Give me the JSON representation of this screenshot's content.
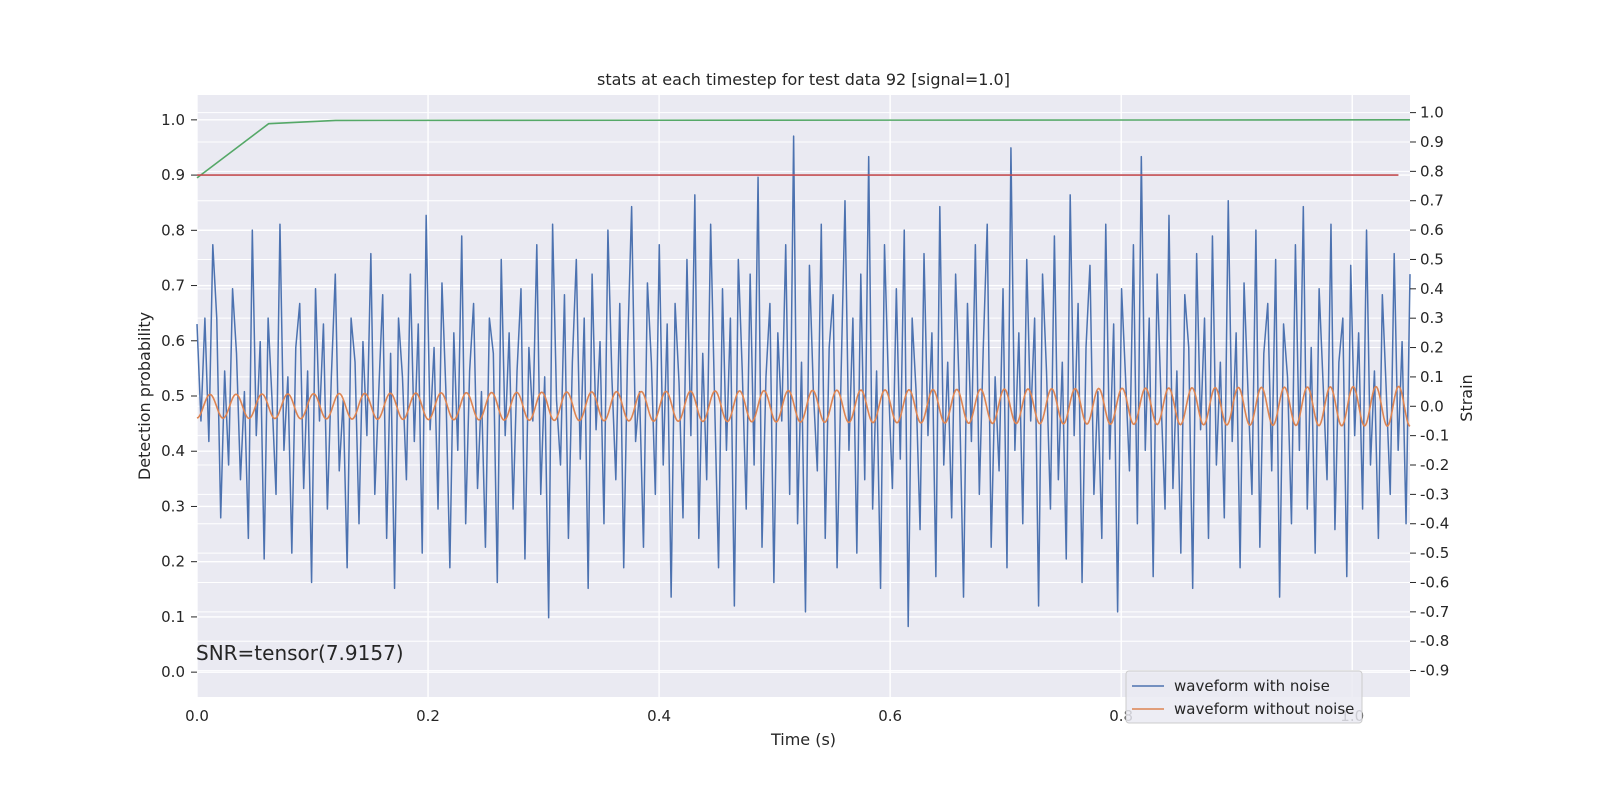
{
  "chart_data": {
    "type": "line",
    "title": "stats at each timestep for test data 92 [signal=1.0]",
    "xlabel": "Time (s)",
    "ylabel_left": "Detection probability",
    "ylabel_right": "Strain",
    "xlim": [
      0.0,
      1.05
    ],
    "ylim_left": [
      -0.045,
      1.045
    ],
    "ylim_right": [
      -0.99,
      1.06
    ],
    "xticks": [
      0.0,
      0.2,
      0.4,
      0.6,
      0.8,
      1.0
    ],
    "yticks_left": [
      0.0,
      0.1,
      0.2,
      0.3,
      0.4,
      0.5,
      0.6,
      0.7,
      0.8,
      0.9,
      1.0
    ],
    "yticks_right": [
      -0.9,
      -0.8,
      -0.7,
      -0.6,
      -0.5,
      -0.4,
      -0.3,
      -0.2,
      -0.1,
      0.0,
      0.1,
      0.2,
      0.3,
      0.4,
      0.5,
      0.6,
      0.7,
      0.8,
      0.9,
      1.0
    ],
    "grid": true,
    "legend_position": "lower-right",
    "annotation": "SNR=tensor(7.9157)",
    "series": [
      {
        "name": "waveform with noise",
        "axis": "right",
        "color": "#4c72b0",
        "x_range": [
          0.0,
          1.05
        ],
        "values": [
          0.28,
          -0.05,
          0.3,
          -0.12,
          0.55,
          0.3,
          -0.38,
          0.12,
          -0.2,
          0.4,
          0.18,
          -0.25,
          0.05,
          -0.45,
          0.6,
          -0.1,
          0.22,
          -0.52,
          0.3,
          0.02,
          -0.3,
          0.62,
          -0.15,
          0.1,
          -0.5,
          0.2,
          0.35,
          -0.28,
          0.12,
          -0.6,
          0.4,
          -0.05,
          0.28,
          -0.35,
          0.1,
          0.45,
          -0.22,
          0.02,
          -0.55,
          0.3,
          0.15,
          -0.4,
          0.22,
          -0.1,
          0.52,
          -0.3,
          0.05,
          0.38,
          -0.45,
          0.18,
          -0.62,
          0.3,
          0.1,
          -0.25,
          0.45,
          -0.12,
          0.28,
          -0.5,
          0.65,
          -0.08,
          0.2,
          -0.35,
          0.42,
          0.05,
          -0.55,
          0.25,
          -0.15,
          0.58,
          -0.4,
          0.12,
          0.35,
          -0.28,
          0.05,
          -0.48,
          0.3,
          0.18,
          -0.6,
          0.5,
          -0.1,
          0.25,
          -0.35,
          0.12,
          0.4,
          -0.52,
          0.2,
          -0.05,
          0.55,
          -0.3,
          0.1,
          -0.72,
          0.62,
          0.02,
          -0.2,
          0.38,
          -0.45,
          0.15,
          0.5,
          -0.18,
          0.3,
          -0.62,
          0.45,
          -0.08,
          0.22,
          -0.4,
          0.6,
          0.1,
          -0.25,
          0.35,
          -0.55,
          0.2,
          0.68,
          -0.12,
          0.05,
          -0.48,
          0.42,
          0.15,
          -0.3,
          0.55,
          -0.2,
          0.28,
          -0.65,
          0.35,
          0.08,
          -0.38,
          0.5,
          -0.1,
          0.72,
          -0.45,
          0.18,
          -0.25,
          0.62,
          0.02,
          -0.55,
          0.4,
          -0.15,
          0.3,
          -0.68,
          0.5,
          0.12,
          -0.35,
          0.45,
          -0.2,
          0.78,
          -0.48,
          0.1,
          0.35,
          -0.6,
          0.25,
          -0.05,
          0.55,
          -0.3,
          0.92,
          -0.4,
          0.15,
          -0.7,
          0.48,
          0.05,
          -0.22,
          0.62,
          -0.45,
          0.2,
          0.38,
          -0.55,
          0.1,
          0.7,
          -0.15,
          0.3,
          -0.5,
          0.45,
          -0.25,
          0.85,
          -0.35,
          0.12,
          -0.62,
          0.55,
          0.08,
          -0.28,
          0.4,
          -0.18,
          0.6,
          -0.75,
          0.3,
          0.05,
          -0.42,
          0.52,
          -0.1,
          0.25,
          -0.58,
          0.68,
          -0.2,
          0.15,
          -0.38,
          0.45,
          0.02,
          -0.65,
          0.35,
          -0.12,
          0.55,
          -0.3,
          0.2,
          0.62,
          -0.48,
          0.1,
          -0.22,
          0.4,
          -0.55,
          0.88,
          -0.15,
          0.25,
          -0.4,
          0.5,
          -0.05,
          0.3,
          -0.68,
          0.45,
          0.12,
          -0.35,
          0.58,
          -0.25,
          0.15,
          -0.52,
          0.72,
          -0.1,
          0.35,
          -0.6,
          0.2,
          0.48,
          -0.3,
          0.05,
          -0.45,
          0.62,
          -0.18,
          0.28,
          -0.7,
          0.4,
          0.1,
          -0.22,
          0.55,
          -0.4,
          0.85,
          -0.15,
          0.3,
          -0.58,
          0.45,
          0.02,
          -0.35,
          0.65,
          -0.28,
          0.12,
          -0.5,
          0.38,
          0.2,
          -0.62,
          0.52,
          -0.08,
          0.3,
          -0.45,
          0.58,
          -0.2,
          0.15,
          -0.38,
          0.7,
          -0.12,
          0.25,
          -0.55,
          0.42,
          0.05,
          -0.3,
          0.6,
          -0.48,
          0.18,
          0.35,
          -0.22,
          0.5,
          -0.65,
          0.28,
          0.1,
          -0.4,
          0.55,
          -0.15,
          0.68,
          -0.35,
          0.2,
          -0.5,
          0.4,
          0.08,
          -0.25,
          0.62,
          -0.42,
          0.15,
          0.3,
          -0.58,
          0.48,
          -0.1,
          0.25,
          -0.35,
          0.6,
          -0.2,
          0.12,
          -0.45,
          0.38,
          0.05,
          -0.3,
          0.52,
          -0.15,
          0.22,
          -0.4,
          0.45
        ],
        "note": "noisy strain, approx. range -0.8 to 0.92"
      },
      {
        "name": "waveform without noise",
        "axis": "right",
        "color": "#dd8452",
        "x_range": [
          0.0,
          1.05
        ],
        "chirp": {
          "cycles": 50,
          "amp_start": 0.04,
          "amp_end": 0.068,
          "offset": 0.0
        }
      },
      {
        "name": "",
        "axis": "left",
        "color": "#55a868",
        "x": [
          0.0,
          0.062,
          0.12,
          1.05
        ],
        "values": [
          0.895,
          0.993,
          0.999,
          1.0
        ]
      },
      {
        "name": "",
        "axis": "left",
        "color": "#c44e52",
        "x": [
          0.0,
          1.04
        ],
        "values": [
          0.9,
          0.9
        ]
      }
    ]
  }
}
